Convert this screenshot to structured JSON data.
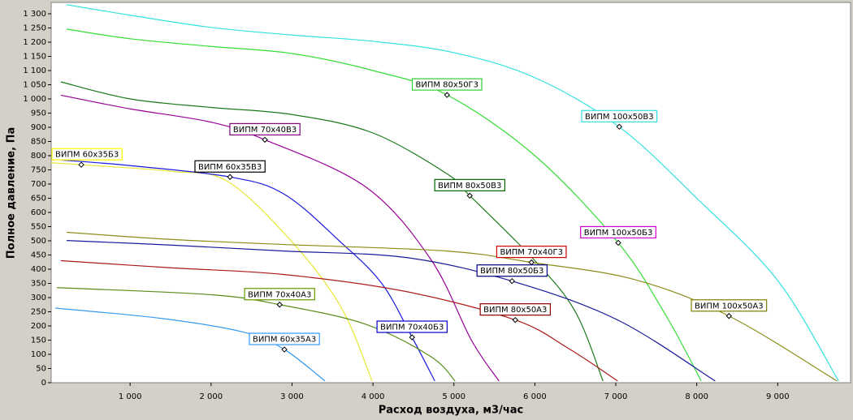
{
  "chart_data": {
    "type": "line",
    "x_label": "Расход воздуха, м3/час",
    "y_label": "Полное давление, Па",
    "xlim": [
      25,
      9900
    ],
    "ylim": [
      0,
      1340
    ],
    "xticks": [
      {
        "value": 1000,
        "label": "1 000"
      },
      {
        "value": 2000,
        "label": "2 000"
      },
      {
        "value": 3000,
        "label": "3 000"
      },
      {
        "value": 4000,
        "label": "4 000"
      },
      {
        "value": 5000,
        "label": "5 000"
      },
      {
        "value": 6000,
        "label": "6 000"
      },
      {
        "value": 7000,
        "label": "7 000"
      },
      {
        "value": 8000,
        "label": "8 000"
      },
      {
        "value": 9000,
        "label": "9 000"
      }
    ],
    "yticks": [
      0,
      50,
      100,
      150,
      200,
      250,
      300,
      350,
      400,
      450,
      500,
      550,
      600,
      650,
      700,
      750,
      800,
      850,
      900,
      950,
      {
        "value": 1000,
        "label": "1 000"
      },
      {
        "value": 1050,
        "label": "1 050"
      },
      {
        "value": 1100,
        "label": "1 100"
      },
      {
        "value": 1150,
        "label": "1 150"
      },
      {
        "value": 1200,
        "label": "1 200"
      },
      {
        "value": 1250,
        "label": "1 250"
      },
      {
        "value": 1300,
        "label": "1 300"
      }
    ],
    "series": [
      {
        "color": "#33e0e0",
        "x": [
          216,
          1000,
          2000,
          3000,
          4000,
          5000,
          6000,
          7040,
          8000,
          9000,
          9753
        ],
        "values": [
          1332,
          1295,
          1252,
          1225,
          1203,
          1163,
          1075,
          902,
          650,
          360,
          6
        ]
      },
      {
        "color": "#33dd33",
        "x": [
          216,
          1000,
          2000,
          3000,
          4000,
          4915,
          6000,
          7030,
          7623,
          8055
        ],
        "values": [
          1246,
          1212,
          1185,
          1160,
          1100,
          1014,
          800,
          493,
          235,
          6
        ]
      },
      {
        "color": "#1a7a1a",
        "x": [
          145,
          1000,
          2000,
          3000,
          4000,
          4915,
          5196,
          6000,
          6500,
          6842
        ],
        "values": [
          1060,
          1000,
          970,
          945,
          880,
          736,
          659,
          430,
          250,
          6
        ]
      },
      {
        "color": "#990099",
        "x": [
          145,
          1000,
          2000,
          2665,
          3910,
          4714,
          5216,
          5557
        ],
        "values": [
          1013,
          965,
          918,
          856,
          690,
          435,
          150,
          6
        ]
      },
      {
        "color": "#e6e633",
        "x": [
          25,
          397,
          1500,
          2200,
          3010,
          3610,
          3990
        ],
        "values": [
          775,
          768,
          745,
          710,
          493,
          264,
          6
        ]
      },
      {
        "color": "#1a1add",
        "x": [
          146,
          1000,
          2234,
          2906,
          3610,
          4111,
          4483,
          4764
        ],
        "values": [
          785,
          765,
          725,
          664,
          493,
          349,
          160,
          6
        ]
      },
      {
        "color": "#8c8c1a",
        "x": [
          216,
          1500,
          2906,
          4915,
          5958,
          7223,
          8398,
          9733
        ],
        "values": [
          530,
          505,
          487,
          464,
          424,
          364,
          235,
          6
        ]
      },
      {
        "color": "#1a1a99",
        "x": [
          216,
          1500,
          2906,
          4413,
          5718,
          7023,
          8228
        ],
        "values": [
          501,
          485,
          464,
          441,
          358,
          221,
          6
        ]
      },
      {
        "color": "#aa1a1a",
        "x": [
          146,
          1500,
          2906,
          4413,
          5758,
          6420,
          7023
        ],
        "values": [
          430,
          405,
          381,
          321,
          221,
          120,
          6
        ]
      },
      {
        "color": "#5a8c1a",
        "x": [
          95,
          2000,
          2847,
          3910,
          4714,
          5015
        ],
        "values": [
          335,
          310,
          275,
          206,
          92,
          6
        ]
      },
      {
        "color": "#3399ee",
        "x": [
          75,
          1401,
          2404,
          2906,
          3408
        ],
        "values": [
          263,
          226,
          178,
          117,
          6
        ]
      }
    ],
    "annotations": [
      {
        "text": "ВИПМ 80x50Г3",
        "x": 4915,
        "y": 1014,
        "color": "#33cc33"
      },
      {
        "text": "ВИПМ 100x50В3",
        "x": 7043,
        "y": 902,
        "color": "#33e0e0"
      },
      {
        "text": "ВИПМ 70x40В3",
        "x": 2665,
        "y": 856,
        "color": "#800080"
      },
      {
        "text": "ВИПМ 60x35Б3",
        "x": 397,
        "y": 768,
        "color": "#ffff00"
      },
      {
        "text": "ВИПМ 60x35В3",
        "x": 2234,
        "y": 725,
        "color": "#000000"
      },
      {
        "text": "ВИПМ 80x50В3",
        "x": 5196,
        "y": 659,
        "color": "#006400"
      },
      {
        "text": "ВИПМ 100x50Б3",
        "x": 7030,
        "y": 493,
        "color": "#cc00cc"
      },
      {
        "text": "ВИПМ 70x40Г3",
        "x": 5958,
        "y": 424,
        "color": "#cc0000"
      },
      {
        "text": "ВИПМ 80x50Б3",
        "x": 5718,
        "y": 358,
        "color": "#000080"
      },
      {
        "text": "ВИПМ 70x40А3",
        "x": 2847,
        "y": 275,
        "color": "#669900"
      },
      {
        "text": "ВИПМ 100x50А3",
        "x": 8398,
        "y": 235,
        "color": "#808000"
      },
      {
        "text": "ВИПМ 80x50А3",
        "x": 5758,
        "y": 221,
        "color": "#8b0000"
      },
      {
        "text": "ВИПМ 70x40Б3",
        "x": 4483,
        "y": 160,
        "color": "#0000cc"
      },
      {
        "text": "ВИПМ 60x35А3",
        "x": 2906,
        "y": 117,
        "color": "#3399ff"
      }
    ]
  }
}
